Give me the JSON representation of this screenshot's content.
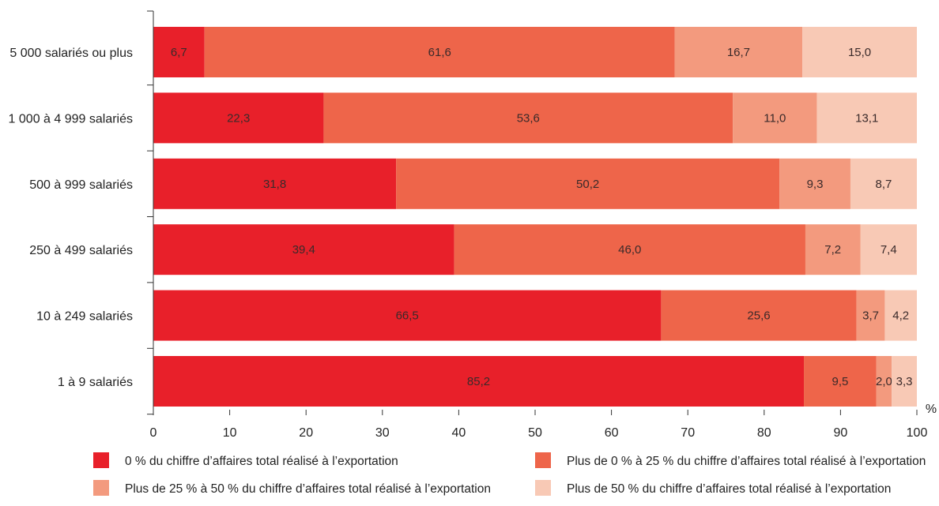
{
  "chart_data": {
    "type": "bar",
    "orientation": "horizontal",
    "stacked": true,
    "categories": [
      "5 000 salariés ou plus",
      "1 000 à 4 999 salariés",
      "500 à 999 salariés",
      "250 à 499 salariés",
      "10 à 249 salariés",
      "1 à 9 salariés"
    ],
    "series": [
      {
        "name": "0 % du chiffre d’affaires total réalisé à l’exportation",
        "color": "#e8202a",
        "values": [
          6.7,
          22.3,
          31.8,
          39.4,
          66.5,
          85.2
        ],
        "labels": [
          "6,7",
          "22,3",
          "31,8",
          "39,4",
          "66,5",
          "85,2"
        ]
      },
      {
        "name": "Plus de 0 % à 25 % du chiffre d’affaires total réalisé à l’exportation",
        "color": "#ee654a",
        "values": [
          61.6,
          53.6,
          50.2,
          46.0,
          25.6,
          9.5
        ],
        "labels": [
          "61,6",
          "53,6",
          "50,2",
          "46,0",
          "25,6",
          "9,5"
        ]
      },
      {
        "name": "Plus de 25 % à 50 % du chiffre d’affaires total réalisé à l’exportation",
        "color": "#f39a7e",
        "values": [
          16.7,
          11.0,
          9.3,
          7.2,
          3.7,
          2.0
        ],
        "labels": [
          "16,7",
          "11,0",
          "9,3",
          "7,2",
          "3,7",
          "2,0"
        ]
      },
      {
        "name": "Plus de 50 % du chiffre d’affaires total réalisé à l’exportation",
        "color": "#f8c9b5",
        "values": [
          15.0,
          13.1,
          8.7,
          7.4,
          4.2,
          3.3
        ],
        "labels": [
          "15,0",
          "13,1",
          "8,7",
          "7,4",
          "4,2",
          "3,3"
        ]
      }
    ],
    "xlim": [
      0,
      100
    ],
    "xticks": [
      "0",
      "10",
      "20",
      "30",
      "40",
      "50",
      "60",
      "70",
      "80",
      "90",
      "100"
    ],
    "x_unit": "%",
    "grid": false,
    "legend_position": "bottom"
  }
}
